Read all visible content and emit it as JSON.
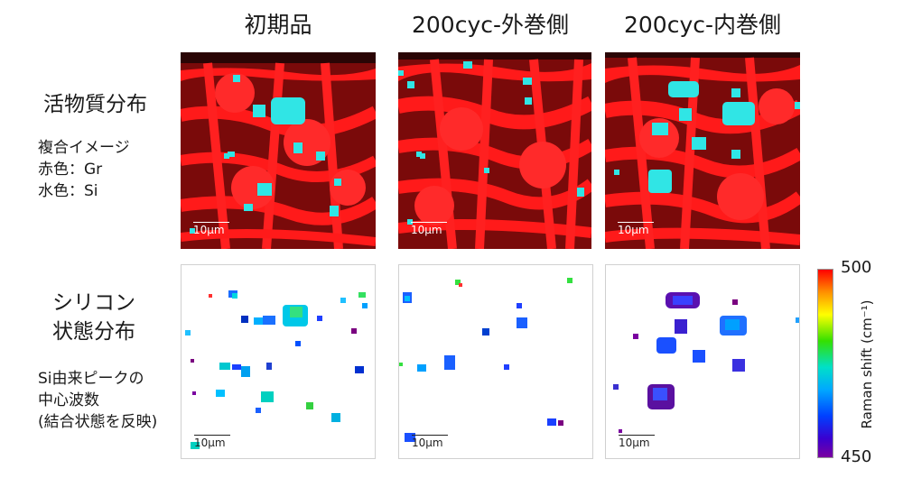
{
  "columns": {
    "c1": "初期品",
    "c2": "200cyc-外巻側",
    "c3": "200cyc-内巻側"
  },
  "row1": {
    "title": "活物質分布",
    "legend": [
      "複合イメージ",
      "赤色：Gr",
      "水色：Si"
    ]
  },
  "row2": {
    "title_line1": "シリコン",
    "title_line2": "状態分布",
    "desc": [
      "Si由来ピークの",
      "中心波数",
      "(結合状態を反映)"
    ]
  },
  "scale_bar": "10μm",
  "colorbar": {
    "max": "500",
    "min": "450",
    "label": "Raman shift (cm⁻¹)",
    "colors": [
      "#ff0000",
      "#ff9000",
      "#ffff00",
      "#34e000",
      "#00e0c8",
      "#00a8ff",
      "#0040ff",
      "#3a00d0",
      "#7a00a0"
    ]
  }
}
